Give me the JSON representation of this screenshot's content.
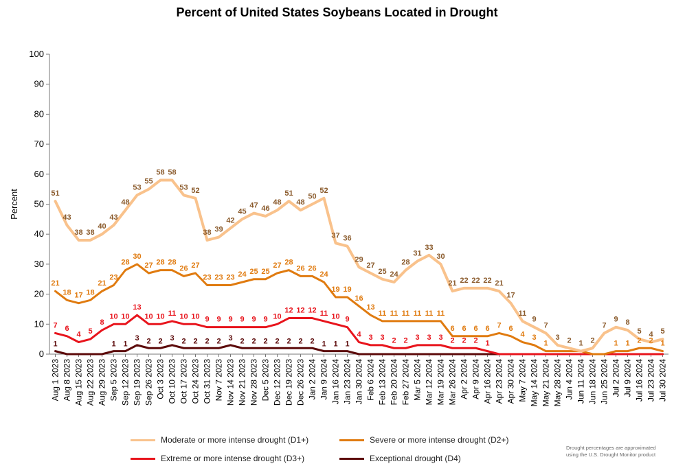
{
  "chart_data": {
    "type": "line",
    "title": "Percent of United States Soybeans  Located in Drought",
    "ylabel": "Percent",
    "xlabel": "",
    "ylim": [
      0,
      100
    ],
    "yticks": [
      0,
      10,
      20,
      30,
      40,
      50,
      60,
      70,
      80,
      90,
      100
    ],
    "grid": false,
    "legend_position": "bottom",
    "categories": [
      "Aug 1 2023",
      "Aug 8 2023",
      "Aug 15 2023",
      "Aug 22 2023",
      "Aug 29 2023",
      "Sep 5 2023",
      "Sep 12 2023",
      "Sep 19 2023",
      "Sep 26 2023",
      "Oct 3 2023",
      "Oct 10 2023",
      "Oct 17 2023",
      "Oct 24 2023",
      "Oct 31 2023",
      "Nov 7 2023",
      "Nov 14 2023",
      "Nov 21 2023",
      "Nov 28 2023",
      "Dec 5 2023",
      "Dec 12 2023",
      "Dec 19 2023",
      "Dec 26 2023",
      "Jan 2 2024",
      "Jan 9 2024",
      "Jan 16 2024",
      "Jan 23 2024",
      "Jan 30 2024",
      "Feb 6 2024",
      "Feb 13 2024",
      "Feb 20 2024",
      "Feb 27 2024",
      "Mar 5 2024",
      "Mar 12 2024",
      "Mar 19 2024",
      "Mar 26 2024",
      "Apr 2 2024",
      "Apr 9 2024",
      "Apr 16 2024",
      "Apr 23 2024",
      "Apr 30 2024",
      "May 7 2024",
      "May 14 2024",
      "May 21 2024",
      "May 28 2024",
      "Jun 4 2024",
      "Jun 11 2024",
      "Jun 18 2024",
      "Jun 25 2024",
      "Jul 2 2024",
      "Jul 9 2024",
      "Jul 16 2024",
      "Jul 23 2024",
      "Jul 30 2024"
    ],
    "tick_labels": [
      "Aug 1 2023",
      "Aug 8 2023",
      "Aug 15 2023",
      "Aug 22 2023",
      "Aug 29 2023",
      "Sep 5 2023",
      "Sep 12 2023",
      "Sep 19 2023",
      "Sep 26 2023",
      "Oct 3 2023",
      "Oct 10 2023",
      "Oct 17 2023",
      "Oct 24 2023",
      "Oct 31 2023",
      "Nov 7 2023",
      "Nov 14 2023",
      "Nov 21 2023",
      "Nov 28 2023",
      "Dec 5 2023",
      "Dec 12 2023",
      "Dec 19 2023",
      "Dec 26 2023",
      "Jan 2 2024",
      "Jan 9 2024",
      "Jan 16 2024",
      "Jan 23 2024",
      "Jan 30 2024",
      "Feb 6 2024",
      "Feb 13 2024",
      "Feb 20 2024",
      "Feb 27 2024",
      "Mar 5 2024",
      "Mar 12 2024",
      "Mar 19 2024",
      "Mar 26 2024",
      "Apr 2 2024",
      "Apr 9 2024",
      "Apr 16 2024",
      "Apr 23 2024",
      "Apr 30 2024",
      "May 7 2024",
      "May 14 2024",
      "May 21 2024",
      "May 28 2024",
      "Jun 4 2024",
      "Jun 11 2024",
      "Jun 18 2024",
      "Jun 25 2024",
      "Jul 2 2024",
      "Jul 9 2024",
      "Jul 16 2024",
      "Jul 23 2024",
      "Jul 30 2024"
    ],
    "series": [
      {
        "name": "Moderate or more intense drought (D1+)",
        "color": "#f9c28c",
        "label_color": "#8a5a2b",
        "values": [
          51,
          43,
          38,
          38,
          40,
          43,
          48,
          53,
          55,
          58,
          58,
          53,
          52,
          38,
          39,
          42,
          45,
          47,
          46,
          48,
          51,
          48,
          50,
          52,
          37,
          36,
          29,
          27,
          25,
          24,
          28,
          31,
          33,
          30,
          21,
          22,
          22,
          22,
          21,
          17,
          11,
          9,
          7,
          3,
          2,
          1,
          2,
          7,
          9,
          8,
          5,
          4,
          5
        ],
        "labels": [
          "51",
          "43",
          "38",
          "38",
          "40",
          "43",
          "48",
          "53",
          "55",
          "58",
          "58",
          "53",
          "52",
          "38",
          "39",
          "42",
          "45",
          "47",
          "46",
          "48",
          "51",
          "48",
          "50",
          "52",
          "37",
          "36",
          "29",
          "27",
          "25",
          "24",
          "28",
          "31",
          "33",
          "30",
          "21",
          "22",
          "22",
          "22",
          "21",
          "17",
          "11",
          "9",
          "7",
          "3",
          "2",
          "1",
          "2",
          "7",
          "9",
          "8",
          "5",
          "4",
          "5"
        ]
      },
      {
        "name": "Severe or more intense drought (D2+)",
        "color": "#e07b10",
        "label_color": "#e07b10",
        "values": [
          21,
          18,
          17,
          18,
          21,
          23,
          28,
          30,
          27,
          28,
          28,
          26,
          27,
          23,
          23,
          23,
          24,
          25,
          25,
          27,
          28,
          26,
          26,
          24,
          19,
          19,
          16,
          13,
          11,
          11,
          11,
          11,
          11,
          11,
          6,
          6,
          6,
          6,
          7,
          6,
          4,
          3,
          1,
          1,
          1,
          1,
          0,
          0,
          1,
          1,
          2,
          2,
          1
        ],
        "labels": [
          "21",
          "18",
          "17",
          "18",
          "21",
          "23",
          "28",
          "30",
          "27",
          "28",
          "28",
          "26",
          "27",
          "23",
          "23",
          "23",
          "24",
          "25",
          "25",
          "27",
          "28",
          "26",
          "26",
          "24",
          "19",
          "19",
          "16",
          "13",
          "11",
          "11",
          "11",
          "11",
          "11",
          "11",
          "6",
          "6",
          "6",
          "6",
          "7",
          "6",
          "4",
          "3",
          "1",
          "",
          "",
          "",
          "",
          "",
          "1",
          "1",
          "2",
          "2",
          "1"
        ]
      },
      {
        "name": "Extreme or more intense drought (D3+)",
        "color": "#e8141c",
        "label_color": "#e8141c",
        "values": [
          7,
          6,
          4,
          5,
          8,
          10,
          10,
          13,
          10,
          10,
          11,
          10,
          10,
          9,
          9,
          9,
          9,
          9,
          9,
          10,
          12,
          12,
          12,
          11,
          10,
          9,
          4,
          3,
          3,
          2,
          2,
          3,
          3,
          3,
          2,
          2,
          2,
          1,
          0,
          0,
          0,
          0,
          0,
          0,
          0,
          0,
          0,
          0,
          0,
          0,
          0,
          0,
          0
        ],
        "labels": [
          "7",
          "6",
          "4",
          "5",
          "8",
          "10",
          "10",
          "13",
          "10",
          "10",
          "11",
          "10",
          "10",
          "9",
          "9",
          "9",
          "9",
          "9",
          "9",
          "10",
          "12",
          "12",
          "12",
          "11",
          "10",
          "9",
          "4",
          "3",
          "3",
          "2",
          "2",
          "3",
          "3",
          "3",
          "2",
          "2",
          "2",
          "1",
          "",
          "",
          "",
          "",
          "",
          "",
          "",
          "",
          "",
          "",
          "",
          "",
          "",
          "",
          ""
        ]
      },
      {
        "name": "Exceptional drought (D4)",
        "color": "#5c0a0a",
        "label_color": "#5c0a0a",
        "values": [
          1,
          0,
          0,
          0,
          0,
          1,
          1,
          3,
          2,
          2,
          3,
          2,
          2,
          2,
          2,
          3,
          2,
          2,
          2,
          2,
          2,
          2,
          2,
          1,
          1,
          1,
          0,
          0,
          0,
          0,
          0,
          0,
          0,
          0,
          0,
          0,
          0,
          0,
          0,
          0,
          0,
          0,
          0,
          0,
          0,
          0,
          0,
          0,
          0,
          0,
          0,
          0,
          0
        ],
        "labels": [
          "1",
          "",
          "",
          "",
          "",
          "1",
          "1",
          "3",
          "2",
          "2",
          "3",
          "2",
          "2",
          "2",
          "2",
          "3",
          "2",
          "2",
          "2",
          "2",
          "2",
          "2",
          "2",
          "1",
          "1",
          "1",
          "",
          "",
          "",
          "",
          "",
          "",
          "",
          "",
          "",
          "",
          "",
          "",
          "",
          "",
          "",
          "",
          "",
          "",
          "",
          "",
          "",
          "",
          "",
          "",
          "",
          "",
          ""
        ]
      }
    ]
  },
  "footnote_lines": [
    "Drought percentages are approximated",
    "using the U.S. Drought Monitor product"
  ]
}
